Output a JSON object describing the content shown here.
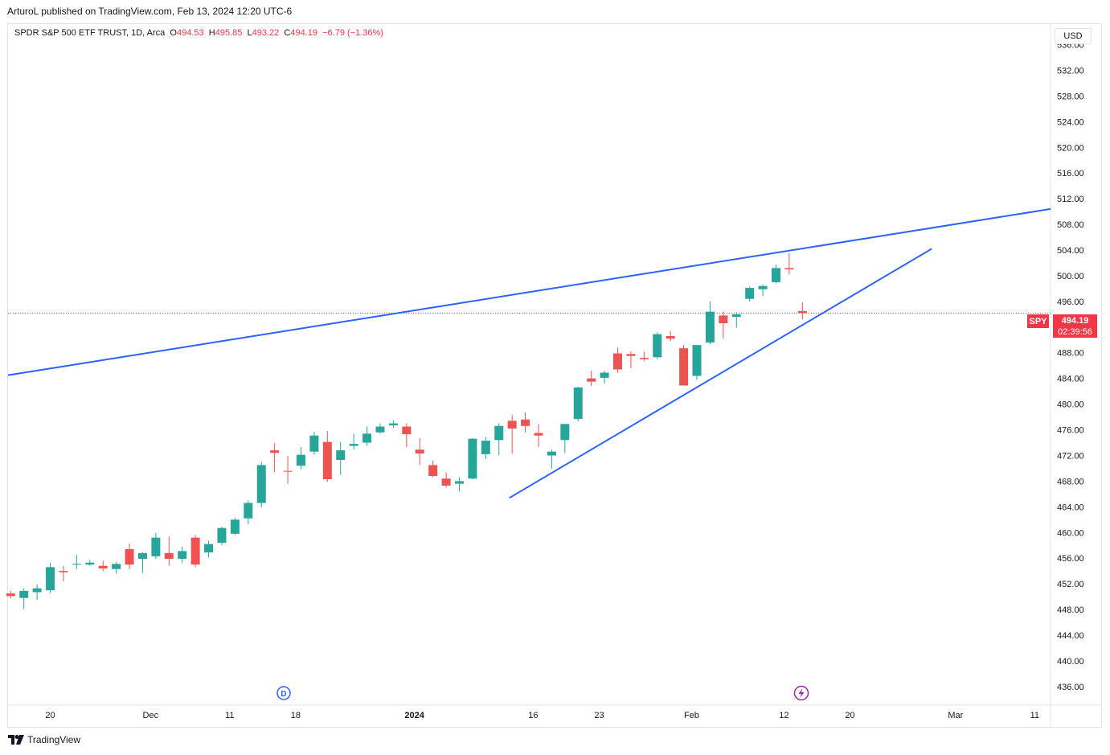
{
  "header": {
    "published_by": "ArturoL published on TradingView.com, Feb 13, 2024 12:20 UTC-6"
  },
  "legend": {
    "symbol_info": "SPDR S&P 500 ETF TRUST, 1D, Arca",
    "open_label": "O",
    "open": "494.53",
    "high_label": "H",
    "high": "495.85",
    "low_label": "L",
    "low": "493.22",
    "close_label": "C",
    "close": "494.19",
    "change": "−6.79 (−1.36%)"
  },
  "price_axis": {
    "currency": "USD"
  },
  "price_tag": {
    "symbol": "SPY",
    "price": "494.19",
    "countdown": "02:39:56"
  },
  "footer": {
    "brand": "TradingView"
  },
  "colors": {
    "up": "#26a69a",
    "down": "#ef5350",
    "trendline": "#2962ff",
    "grid_border": "#e0e3eb",
    "last_price_line": "#f23645",
    "dividend_marker": "#2962ff",
    "earnings_marker": "#9c27b0"
  },
  "markers": [
    {
      "type": "dividend",
      "label": "D",
      "date": "Dec 15"
    },
    {
      "type": "earnings",
      "icon": "lightning-icon",
      "date": "Feb 13"
    }
  ],
  "chart_data": {
    "type": "candlestick",
    "title": "SPDR S&P 500 ETF TRUST, 1D, Arca",
    "ylabel": "USD",
    "ylim": [
      433.1,
      539.2
    ],
    "yticks": [
      436,
      440,
      444,
      448,
      452,
      456,
      460,
      464,
      468,
      472,
      476,
      480,
      484,
      488,
      492,
      496,
      500,
      504,
      508,
      512,
      516,
      520,
      524,
      528,
      532,
      536
    ],
    "ytick_labels": [
      "436.00",
      "440.00",
      "444.00",
      "448.00",
      "452.00",
      "456.00",
      "460.00",
      "464.00",
      "468.00",
      "472.00",
      "476.00",
      "480.00",
      "484.00",
      "488.00",
      "492.00",
      "496.00",
      "500.00",
      "504.00",
      "508.00",
      "512.00",
      "516.00",
      "520.00",
      "524.00",
      "528.00",
      "532.00",
      "536.00"
    ],
    "xlim": [
      -0.2,
      78.8
    ],
    "xticks": [
      {
        "label": "20",
        "index": 3,
        "bold": false
      },
      {
        "label": "Dec",
        "index": 10.6,
        "bold": false
      },
      {
        "label": "11",
        "index": 16.6,
        "bold": false
      },
      {
        "label": "18",
        "index": 21.6,
        "bold": false
      },
      {
        "label": "2024",
        "index": 30.6,
        "bold": true
      },
      {
        "label": "16",
        "index": 39.6,
        "bold": false
      },
      {
        "label": "23",
        "index": 44.6,
        "bold": false
      },
      {
        "label": "Feb",
        "index": 51.6,
        "bold": false
      },
      {
        "label": "12",
        "index": 58.6,
        "bold": false
      },
      {
        "label": "20",
        "index": 63.6,
        "bold": false
      },
      {
        "label": "Mar",
        "index": 71.6,
        "bold": false
      },
      {
        "label": "11",
        "index": 77.6,
        "bold": false
      }
    ],
    "candles": [
      {
        "o": 450.5,
        "h": 450.9,
        "l": 449.7,
        "c": 450.1
      },
      {
        "o": 449.8,
        "h": 451.3,
        "l": 448.1,
        "c": 450.9
      },
      {
        "o": 450.7,
        "h": 451.9,
        "l": 449.5,
        "c": 451.3
      },
      {
        "o": 451.0,
        "h": 455.3,
        "l": 450.6,
        "c": 454.6
      },
      {
        "o": 454.0,
        "h": 454.8,
        "l": 452.4,
        "c": 453.8
      },
      {
        "o": 455.0,
        "h": 456.5,
        "l": 454.3,
        "c": 455.1
      },
      {
        "o": 455.0,
        "h": 455.8,
        "l": 454.8,
        "c": 455.3
      },
      {
        "o": 454.8,
        "h": 455.6,
        "l": 454.0,
        "c": 454.4
      },
      {
        "o": 454.3,
        "h": 455.4,
        "l": 453.6,
        "c": 455.1
      },
      {
        "o": 457.4,
        "h": 458.3,
        "l": 454.3,
        "c": 455.0
      },
      {
        "o": 455.9,
        "h": 456.9,
        "l": 453.7,
        "c": 456.8
      },
      {
        "o": 456.3,
        "h": 459.9,
        "l": 455.9,
        "c": 459.2
      },
      {
        "o": 456.8,
        "h": 459.4,
        "l": 454.8,
        "c": 455.9
      },
      {
        "o": 455.9,
        "h": 457.8,
        "l": 455.3,
        "c": 457.1
      },
      {
        "o": 459.2,
        "h": 459.6,
        "l": 454.6,
        "c": 455.0
      },
      {
        "o": 456.9,
        "h": 458.7,
        "l": 456.1,
        "c": 458.2
      },
      {
        "o": 458.4,
        "h": 460.9,
        "l": 458.0,
        "c": 460.7
      },
      {
        "o": 459.8,
        "h": 462.3,
        "l": 459.6,
        "c": 462.0
      },
      {
        "o": 462.2,
        "h": 465.0,
        "l": 461.3,
        "c": 464.6
      },
      {
        "o": 464.6,
        "h": 471.0,
        "l": 463.9,
        "c": 470.5
      },
      {
        "o": 472.8,
        "h": 473.9,
        "l": 469.4,
        "c": 472.4
      },
      {
        "o": 469.6,
        "h": 471.9,
        "l": 467.6,
        "c": 469.5
      },
      {
        "o": 470.4,
        "h": 473.3,
        "l": 469.8,
        "c": 472.1
      },
      {
        "o": 472.6,
        "h": 475.7,
        "l": 472.1,
        "c": 475.1
      },
      {
        "o": 474.1,
        "h": 475.8,
        "l": 467.9,
        "c": 468.3
      },
      {
        "o": 471.3,
        "h": 474.1,
        "l": 469.0,
        "c": 472.8
      },
      {
        "o": 473.5,
        "h": 475.4,
        "l": 472.9,
        "c": 473.8
      },
      {
        "o": 474.0,
        "h": 476.5,
        "l": 473.5,
        "c": 475.4
      },
      {
        "o": 475.6,
        "h": 477.0,
        "l": 475.4,
        "c": 476.5
      },
      {
        "o": 476.7,
        "h": 477.5,
        "l": 476.3,
        "c": 477.0
      },
      {
        "o": 476.5,
        "h": 477.0,
        "l": 473.3,
        "c": 475.3
      },
      {
        "o": 472.9,
        "h": 474.7,
        "l": 470.5,
        "c": 472.3
      },
      {
        "o": 470.5,
        "h": 471.2,
        "l": 468.6,
        "c": 468.8
      },
      {
        "o": 468.4,
        "h": 469.4,
        "l": 467.0,
        "c": 467.3
      },
      {
        "o": 467.6,
        "h": 468.6,
        "l": 466.4,
        "c": 468.0
      },
      {
        "o": 468.4,
        "h": 474.7,
        "l": 468.3,
        "c": 474.6
      },
      {
        "o": 472.2,
        "h": 474.9,
        "l": 471.4,
        "c": 474.3
      },
      {
        "o": 474.4,
        "h": 477.0,
        "l": 472.0,
        "c": 476.6
      },
      {
        "o": 477.4,
        "h": 478.3,
        "l": 472.3,
        "c": 476.2
      },
      {
        "o": 477.6,
        "h": 478.7,
        "l": 475.6,
        "c": 476.6
      },
      {
        "o": 475.5,
        "h": 476.9,
        "l": 473.3,
        "c": 475.1
      },
      {
        "o": 472.0,
        "h": 472.9,
        "l": 469.9,
        "c": 472.6
      },
      {
        "o": 474.4,
        "h": 476.9,
        "l": 472.4,
        "c": 476.9
      },
      {
        "o": 477.7,
        "h": 482.7,
        "l": 477.3,
        "c": 482.6
      },
      {
        "o": 484.0,
        "h": 485.2,
        "l": 482.8,
        "c": 483.5
      },
      {
        "o": 484.1,
        "h": 485.2,
        "l": 483.2,
        "c": 484.9
      },
      {
        "o": 487.9,
        "h": 488.8,
        "l": 484.9,
        "c": 485.4
      },
      {
        "o": 487.8,
        "h": 488.2,
        "l": 485.6,
        "c": 487.5
      },
      {
        "o": 487.2,
        "h": 488.2,
        "l": 486.7,
        "c": 487.0
      },
      {
        "o": 487.3,
        "h": 491.2,
        "l": 487.0,
        "c": 490.9
      },
      {
        "o": 490.6,
        "h": 491.4,
        "l": 489.8,
        "c": 490.2
      },
      {
        "o": 488.7,
        "h": 489.2,
        "l": 482.9,
        "c": 482.9
      },
      {
        "o": 484.4,
        "h": 489.2,
        "l": 483.8,
        "c": 489.2
      },
      {
        "o": 489.6,
        "h": 496.0,
        "l": 489.3,
        "c": 494.4
      },
      {
        "o": 493.8,
        "h": 494.4,
        "l": 490.2,
        "c": 492.6
      },
      {
        "o": 493.6,
        "h": 494.3,
        "l": 491.9,
        "c": 494.0
      },
      {
        "o": 496.4,
        "h": 498.3,
        "l": 496.0,
        "c": 498.1
      },
      {
        "o": 497.9,
        "h": 498.6,
        "l": 496.8,
        "c": 498.4
      },
      {
        "o": 499.0,
        "h": 501.7,
        "l": 498.8,
        "c": 501.2
      },
      {
        "o": 501.2,
        "h": 503.5,
        "l": 500.2,
        "c": 501.0
      },
      {
        "o": 494.5,
        "h": 495.9,
        "l": 493.2,
        "c": 494.2
      }
    ],
    "last_price": 494.19,
    "trendlines": [
      {
        "name": "upper-resistance-trendline",
        "x1": -0.2,
        "y1": 484.5,
        "x2": 78.8,
        "y2": 510.4
      },
      {
        "name": "lower-support-trendline",
        "x1": 37.8,
        "y1": 465.4,
        "x2": 69.8,
        "y2": 504.2
      }
    ]
  }
}
